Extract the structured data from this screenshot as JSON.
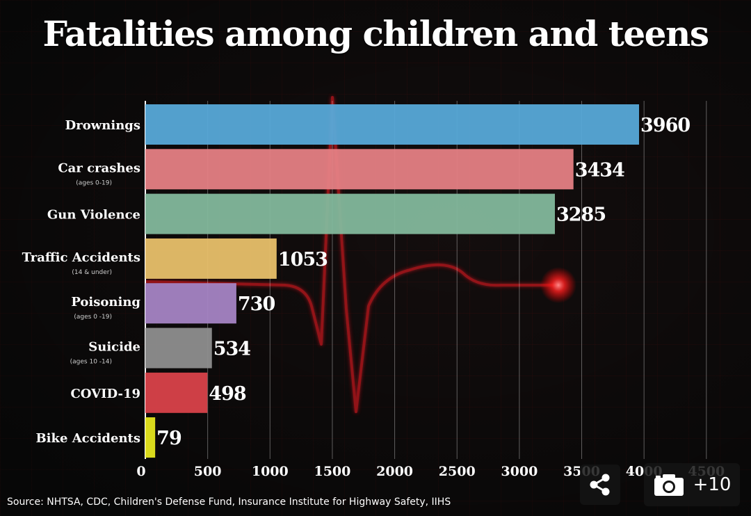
{
  "title": "Fatalities among children and teens",
  "source": "Source: NHTSA, CDC, Children's Defense Fund, Insurance Institute for Highway Safety, IIHS",
  "gallery": {
    "share_icon": "share-icon",
    "camera_icon": "camera-icon",
    "count": "+10"
  },
  "chart_data": {
    "type": "bar",
    "orientation": "horizontal",
    "title": "Fatalities among children and teens",
    "xlabel": "",
    "ylabel": "",
    "xlim": [
      0,
      4500
    ],
    "ticks": [
      "0",
      "500",
      "1000",
      "1500",
      "2000",
      "2500",
      "3000",
      "3500",
      "4000",
      "4500"
    ],
    "grid": true,
    "categories": [
      {
        "label": "Drownings",
        "sub": "",
        "value": 3960,
        "value_label": "3960",
        "color": "#57a9d8"
      },
      {
        "label": "Car crashes",
        "sub": "(ages 0-19)",
        "value": 3434,
        "value_label": "3434",
        "color": "#e57f84"
      },
      {
        "label": "Gun Violence",
        "sub": "",
        "value": 3285,
        "value_label": "3285",
        "color": "#83b89c"
      },
      {
        "label": "Traffic Accidents",
        "sub": "(14 & under)",
        "value": 1053,
        "value_label": "1053",
        "color": "#e8c06a"
      },
      {
        "label": "Poisoning",
        "sub": "(ages 0 -19)",
        "value": 730,
        "value_label": "730",
        "color": "#a584c4"
      },
      {
        "label": "Suicide",
        "sub": "(ages 10 -14)",
        "value": 534,
        "value_label": "534",
        "color": "#8e8e8e"
      },
      {
        "label": "COVID-19",
        "sub": "",
        "value": 498,
        "value_label": "498",
        "color": "#d9424a"
      },
      {
        "label": "Bike Accidents",
        "sub": "",
        "value": 79,
        "value_label": "79",
        "color": "#e6e61e"
      }
    ]
  }
}
